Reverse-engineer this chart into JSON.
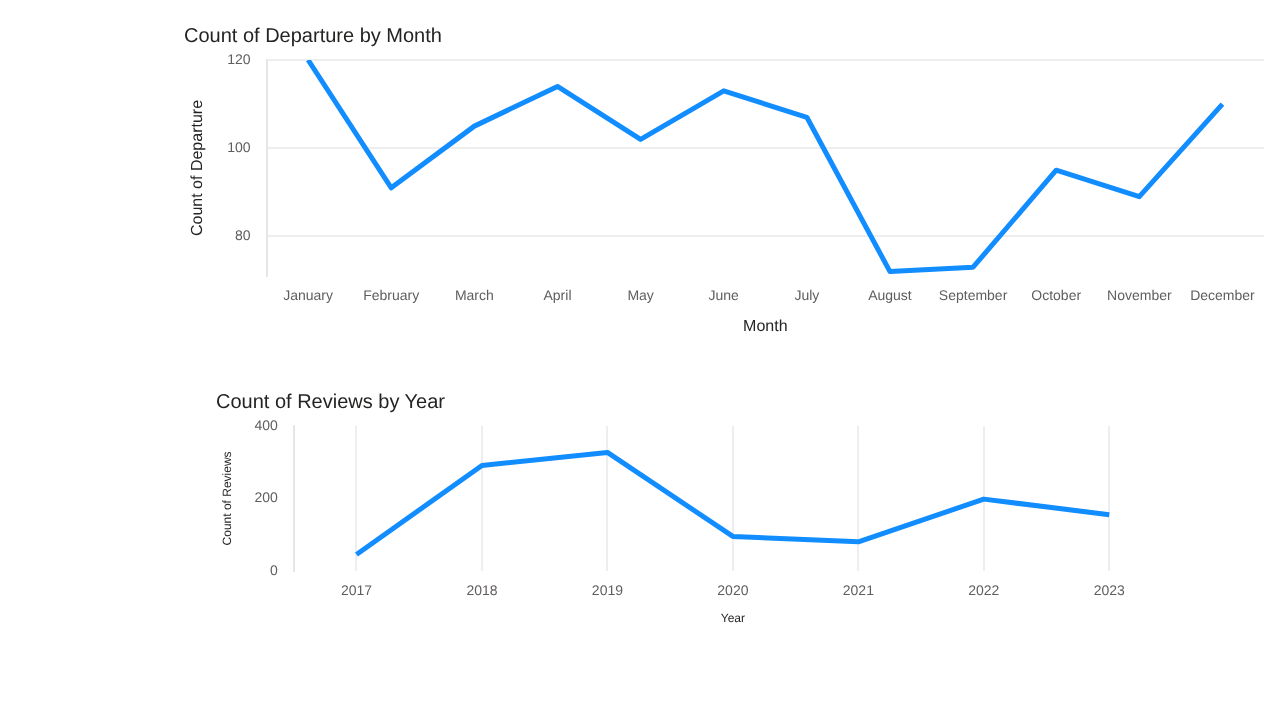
{
  "chart_data": [
    {
      "type": "line",
      "title": "Count of Departure by Month",
      "xlabel": "Month",
      "ylabel": "Count of Departure",
      "categories": [
        "January",
        "February",
        "March",
        "April",
        "May",
        "June",
        "July",
        "August",
        "September",
        "October",
        "November",
        "December"
      ],
      "series": [
        {
          "color": "#118dff",
          "values": [
            120,
            91,
            105,
            114,
            102,
            113,
            107,
            72,
            73,
            95,
            89,
            110
          ]
        }
      ],
      "ylim": [
        71,
        120
      ],
      "yticks": [
        80,
        100,
        120
      ],
      "grid": "y",
      "legend": false
    },
    {
      "type": "line",
      "title": "Count of Reviews by Year",
      "xlabel": "Year",
      "ylabel": "Count of Reviews",
      "categories": [
        "2017",
        "2018",
        "2019",
        "2020",
        "2021",
        "2022",
        "2023"
      ],
      "series": [
        {
          "color": "#118dff",
          "values": [
            45,
            291,
            327,
            95,
            80,
            198,
            155
          ]
        }
      ],
      "ylim": [
        0,
        400
      ],
      "yticks": [
        0,
        200,
        400
      ],
      "grid": "x",
      "legend": false
    }
  ]
}
